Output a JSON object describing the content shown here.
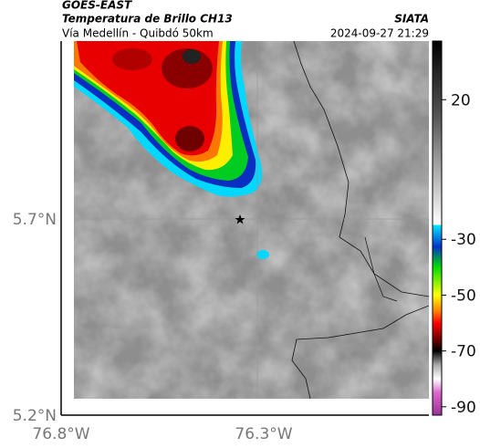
{
  "header": {
    "title": "GOES-EAST",
    "subtitle": "Temperatura de Brillo CH13",
    "route": "Vía Medellín - Quibdó 50km",
    "source": "SIATA",
    "timestamp": "2024-09-27 21:29"
  },
  "map": {
    "lat_labels": [
      "5.7°N",
      "5.2°N"
    ],
    "lon_labels": [
      "76.8°W",
      "76.3°W"
    ]
  },
  "colorbar": {
    "range": [
      -93,
      41
    ],
    "ticks": [
      20,
      -30,
      -50,
      -70,
      -90
    ]
  }
}
